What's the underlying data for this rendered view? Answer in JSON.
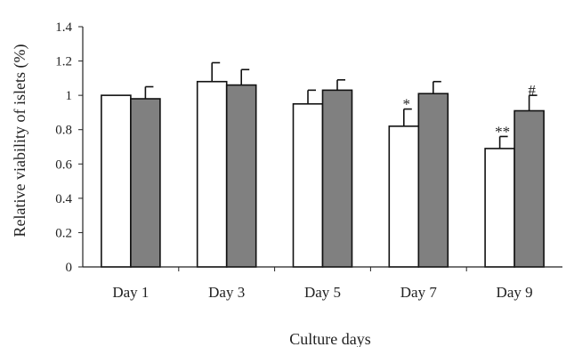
{
  "chart_data": {
    "type": "bar",
    "title": "",
    "xlabel": "Culture days",
    "ylabel": "Relative viability of islets (%)",
    "ylim": [
      0,
      1.4
    ],
    "yticks": [
      0,
      0.2,
      0.4,
      0.6,
      0.8,
      1,
      1.2,
      1.4
    ],
    "ytick_labels": [
      "0",
      "0.2",
      "0.4",
      "0.6",
      "0.8",
      "1",
      "1.2",
      "1.4"
    ],
    "grid": false,
    "legend": "none",
    "categories": [
      "Day 1",
      "Day 3",
      "Day 5",
      "Day 7",
      "Day 9"
    ],
    "series": [
      {
        "fill": "#ffffff",
        "values": [
          1.0,
          1.08,
          0.95,
          0.82,
          0.69
        ],
        "errors": [
          0.0,
          0.11,
          0.08,
          0.1,
          0.07
        ],
        "annotations": [
          "",
          "",
          "",
          "*",
          "**"
        ]
      },
      {
        "fill": "#808080",
        "values": [
          0.98,
          1.06,
          1.03,
          1.01,
          0.91
        ],
        "errors": [
          0.07,
          0.09,
          0.06,
          0.07,
          0.09
        ],
        "annotations": [
          "",
          "",
          "",
          "",
          "#"
        ]
      }
    ]
  }
}
